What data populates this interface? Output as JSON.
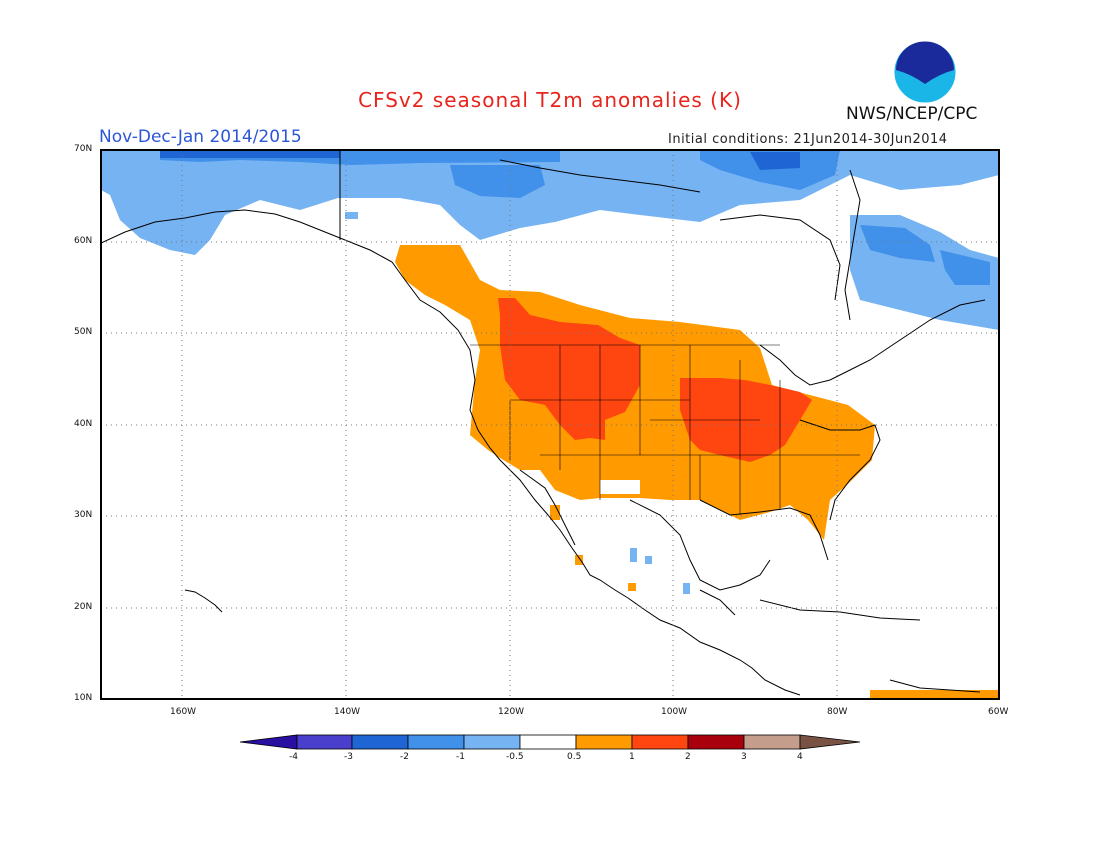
{
  "header": {
    "title": "CFSv2 seasonal T2m anomalies (K)",
    "period": "Nov-Dec-Jan 2014/2015",
    "initial_conditions": "Initial conditions: 21Jun2014-30Jun2014",
    "agency": "NWS/NCEP/CPC",
    "logo_text": "NOAA"
  },
  "map": {
    "projection": "lat-lon",
    "lat_range": [
      10,
      70
    ],
    "lon_range": [
      -172,
      -60
    ],
    "lat_labels": [
      "70N",
      "60N",
      "50N",
      "40N",
      "30N",
      "20N",
      "10N"
    ],
    "lon_labels": [
      "160W",
      "140W",
      "120W",
      "100W",
      "80W",
      "60W"
    ]
  },
  "legend": {
    "labels": [
      "-4",
      "-3",
      "-2",
      "-1",
      "-0.5",
      "0.5",
      "1",
      "2",
      "3",
      "4"
    ],
    "colors": [
      "#2a0fa3",
      "#4a3fcc",
      "#1f66d4",
      "#4190ea",
      "#76b3f2",
      "#ffffff",
      "#ff9b00",
      "#ff4510",
      "#a8000c",
      "#c49d8c",
      "#7a5244"
    ]
  }
}
